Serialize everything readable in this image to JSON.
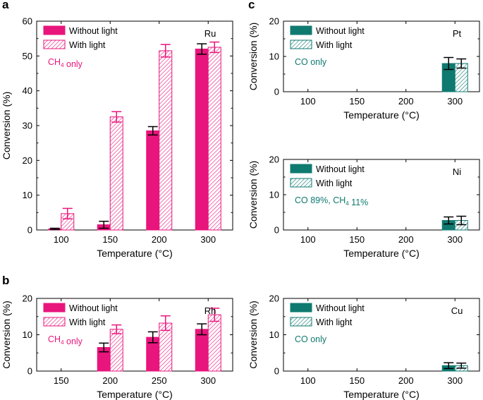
{
  "colors": {
    "ru_rh": "#e8157c",
    "pt_ni_cu": "#0f7a70",
    "axis": "#000000",
    "errorbar": "#000000"
  },
  "chart_data": [
    {
      "panel_label": "a",
      "type": "bar",
      "title": "Ru",
      "annotation": "CH4 only",
      "categories": [
        "100",
        "150",
        "200",
        "300"
      ],
      "series": [
        {
          "name": "Without light",
          "fill": "solid",
          "values": [
            0.3,
            1.5,
            28.5,
            52.0
          ],
          "errors": [
            0.2,
            1.0,
            1.2,
            1.5
          ],
          "error_color": "errorbar"
        },
        {
          "name": "With light",
          "fill": "hatched",
          "values": [
            4.7,
            32.5,
            51.5,
            52.5
          ],
          "errors": [
            1.5,
            1.5,
            1.8,
            1.5
          ],
          "error_color": "series"
        }
      ],
      "xlabel": "Temperature (°C)",
      "ylabel": "Conversion (%)",
      "ylim": [
        0,
        60
      ],
      "yticks": [
        0,
        10,
        20,
        30,
        40,
        50,
        60
      ],
      "legend_position": "top-left",
      "grid": false
    },
    {
      "panel_label": "b",
      "type": "bar",
      "title": "Rh",
      "annotation": "CH4 only",
      "categories": [
        "150",
        "200",
        "250",
        "300"
      ],
      "series": [
        {
          "name": "Without light",
          "fill": "solid",
          "values": [
            0,
            6.5,
            9.3,
            11.5
          ],
          "errors": [
            0,
            1.2,
            1.5,
            1.5
          ],
          "error_color": "errorbar"
        },
        {
          "name": "With light",
          "fill": "hatched",
          "values": [
            0,
            11.5,
            13.2,
            15.5
          ],
          "errors": [
            0,
            1.2,
            2.0,
            1.8
          ],
          "error_color": "series"
        }
      ],
      "xlabel": "Temperature (°C)",
      "ylabel": "Conversion (%)",
      "ylim": [
        0,
        20
      ],
      "yticks": [
        0,
        10,
        20
      ],
      "legend_position": "top-left",
      "grid": false
    },
    {
      "panel_label": "c",
      "type": "bar",
      "title": "Pt",
      "annotation": "CO only",
      "categories": [
        "100",
        "150",
        "200",
        "300"
      ],
      "series": [
        {
          "name": "Without light",
          "fill": "solid",
          "values": [
            0,
            0,
            0,
            8.0
          ],
          "errors": [
            0,
            0,
            0,
            1.7
          ],
          "error_color": "errorbar"
        },
        {
          "name": "With light",
          "fill": "hatched",
          "values": [
            0,
            0,
            0,
            8.0
          ],
          "errors": [
            0,
            0,
            0,
            1.3
          ],
          "error_color": "errorbar"
        }
      ],
      "xlabel": "Temperature (°C)",
      "ylabel": "Conversion (%)",
      "ylim": [
        0,
        20
      ],
      "yticks": [
        0,
        10,
        20
      ],
      "legend_position": "top-left",
      "grid": false
    },
    {
      "panel_label": "",
      "type": "bar",
      "title": "Ni",
      "annotation": "CO 89%, CH4 11%",
      "categories": [
        "100",
        "150",
        "200",
        "300"
      ],
      "series": [
        {
          "name": "Without light",
          "fill": "solid",
          "values": [
            0,
            0,
            0,
            2.7
          ],
          "errors": [
            0,
            0,
            0,
            1.0
          ],
          "error_color": "errorbar"
        },
        {
          "name": "With light",
          "fill": "hatched",
          "values": [
            0,
            0,
            0,
            2.7
          ],
          "errors": [
            0,
            0,
            0,
            1.2
          ],
          "error_color": "errorbar"
        }
      ],
      "xlabel": "Temperature (°C)",
      "ylabel": "Conversion (%)",
      "ylim": [
        0,
        20
      ],
      "yticks": [
        0,
        10,
        20
      ],
      "legend_position": "top-left",
      "grid": false
    },
    {
      "panel_label": "",
      "type": "bar",
      "title": "Cu",
      "annotation": "CO only",
      "categories": [
        "100",
        "150",
        "200",
        "300"
      ],
      "series": [
        {
          "name": "Without light",
          "fill": "solid",
          "values": [
            0,
            0,
            0,
            1.5
          ],
          "errors": [
            0,
            0,
            0,
            0.8
          ],
          "error_color": "errorbar"
        },
        {
          "name": "With light",
          "fill": "hatched",
          "values": [
            0,
            0,
            0,
            1.5
          ],
          "errors": [
            0,
            0,
            0,
            0.7
          ],
          "error_color": "errorbar"
        }
      ],
      "xlabel": "Temperature (°C)",
      "ylabel": "Conversion (%)",
      "ylim": [
        0,
        20
      ],
      "yticks": [
        0,
        10,
        20
      ],
      "legend_position": "top-left",
      "grid": false
    }
  ]
}
